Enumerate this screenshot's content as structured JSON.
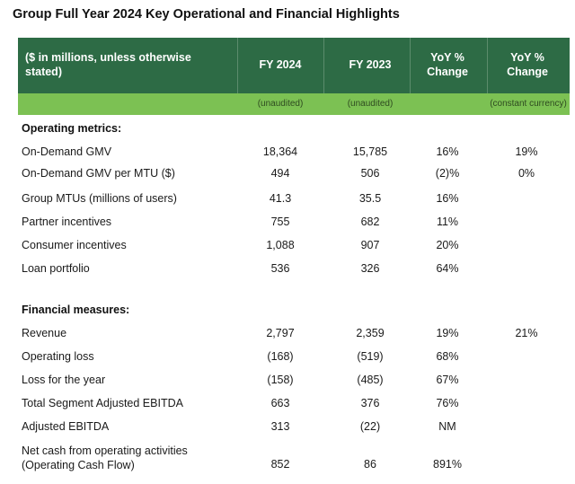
{
  "title": "Group Full Year 2024 Key Operational and Financial Highlights",
  "header": {
    "col1": "($ in millions, unless otherwise stated)",
    "col2": "FY 2024",
    "col3": "FY 2023",
    "col4": "YoY % Change",
    "col5": "YoY % Change"
  },
  "subheader": {
    "fy2024": "(unaudited)",
    "fy2023": "(unaudited)",
    "constant": "(constant currency)"
  },
  "colors": {
    "header_bg": "#2d6b45",
    "subheader_bg": "#7cc153"
  },
  "sections": {
    "operating_title": "Operating metrics:",
    "financial_title": "Financial measures:"
  },
  "operating_rows": [
    {
      "label": "On-Demand GMV",
      "fy2024": "18,364",
      "fy2023": "15,785",
      "yoy": "16%",
      "cc": "19%"
    },
    {
      "label": "On-Demand GMV per MTU ($)",
      "fy2024": "494",
      "fy2023": "506",
      "yoy": "(2)%",
      "cc": "0%"
    },
    {
      "label": "Group MTUs (millions of users)",
      "fy2024": "41.3",
      "fy2023": "35.5",
      "yoy": "16%",
      "cc": ""
    },
    {
      "label": "Partner incentives",
      "fy2024": "755",
      "fy2023": "682",
      "yoy": "11%",
      "cc": ""
    },
    {
      "label": "Consumer incentives",
      "fy2024": "1,088",
      "fy2023": "907",
      "yoy": "20%",
      "cc": ""
    },
    {
      "label": "Loan portfolio",
      "fy2024": "536",
      "fy2023": "326",
      "yoy": "64%",
      "cc": ""
    }
  ],
  "financial_rows": [
    {
      "label": "Revenue",
      "fy2024": "2,797",
      "fy2023": "2,359",
      "yoy": "19%",
      "cc": "21%"
    },
    {
      "label": "Operating loss",
      "fy2024": "(168)",
      "fy2023": "(519)",
      "yoy": "68%",
      "cc": ""
    },
    {
      "label": "Loss for the year",
      "fy2024": "(158)",
      "fy2023": "(485)",
      "yoy": "67%",
      "cc": ""
    },
    {
      "label": "Total Segment Adjusted EBITDA",
      "fy2024": "663",
      "fy2023": "376",
      "yoy": "76%",
      "cc": ""
    },
    {
      "label": "Adjusted EBITDA",
      "fy2024": "313",
      "fy2023": "(22)",
      "yoy": "NM",
      "cc": ""
    }
  ],
  "last_row": {
    "label_line1": "Net cash from operating activities",
    "label_line2": "(Operating Cash Flow)",
    "fy2024": "852",
    "fy2023": "86",
    "yoy": "891%",
    "cc": ""
  }
}
